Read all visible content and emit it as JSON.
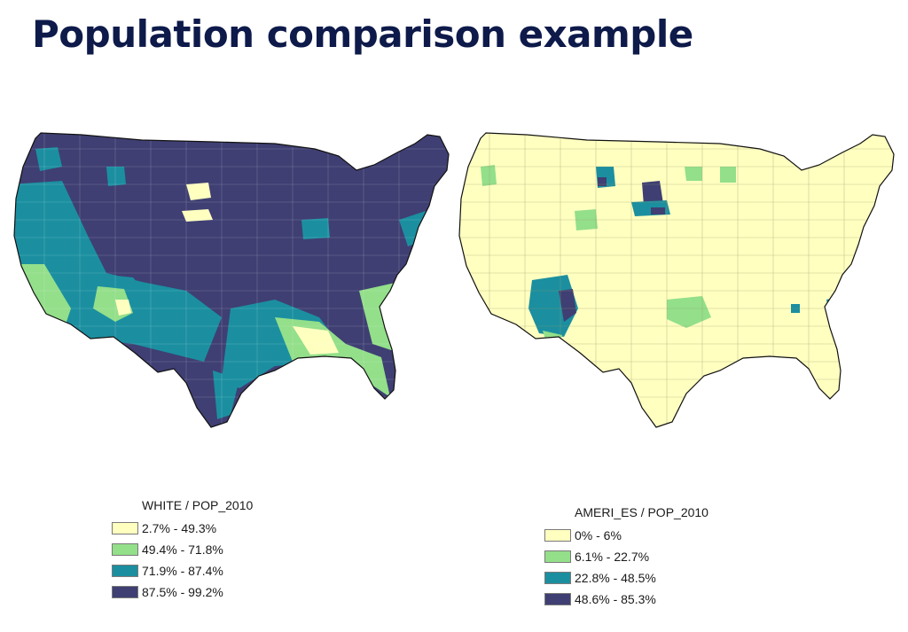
{
  "title": "Population comparison example",
  "maps": [
    {
      "legend_title": "WHITE / POP_2010",
      "classes": [
        {
          "label": "2.7% - 49.3%",
          "color": "#ffffc0"
        },
        {
          "label": "49.4% - 71.8%",
          "color": "#93df8a"
        },
        {
          "label": "71.9% - 87.4%",
          "color": "#1b8fa0"
        },
        {
          "label": "87.5% - 99.2%",
          "color": "#3f3f73"
        }
      ]
    },
    {
      "legend_title": "AMERI_ES / POP_2010",
      "classes": [
        {
          "label": "0% - 6%",
          "color": "#ffffc0"
        },
        {
          "label": "6.1% - 22.7%",
          "color": "#93df8a"
        },
        {
          "label": "22.8% - 48.5%",
          "color": "#1b8fa0"
        },
        {
          "label": "48.6% - 85.3%",
          "color": "#3f3f73"
        }
      ]
    }
  ]
}
